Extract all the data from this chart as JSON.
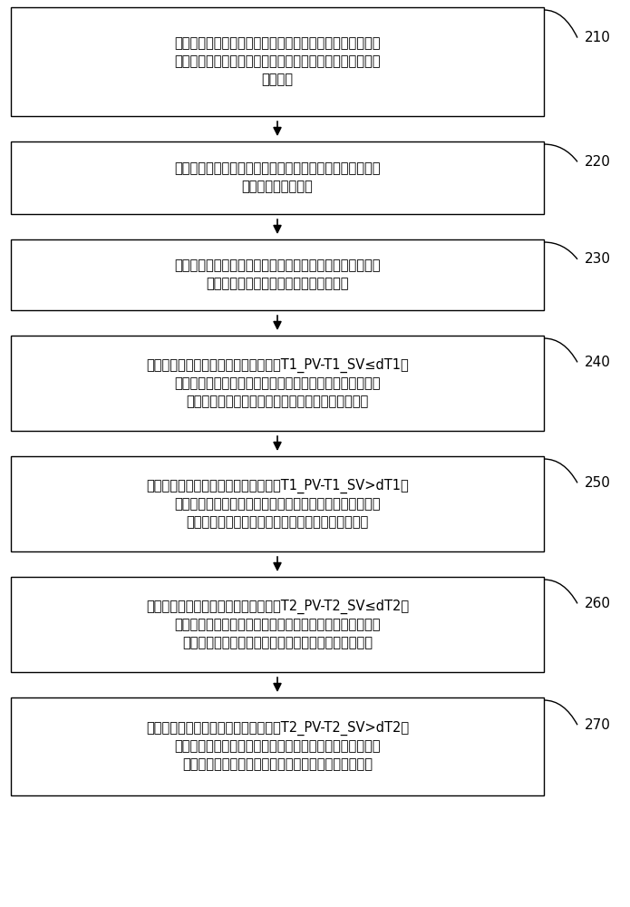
{
  "background_color": "#ffffff",
  "box_edge_color": "#000000",
  "box_fill_color": "#ffffff",
  "arrow_color": "#000000",
  "text_color": "#000000",
  "label_color": "#000000",
  "figsize": [
    6.95,
    10.0
  ],
  "dpi": 100,
  "boxes": [
    {
      "id": 210,
      "label": "210",
      "text_lines": [
        "获取压缩机的运行状态、设置在热旁路中的电子膨胀阀的开",
        "度和各间室的实际温度；其中，各间室均设置有对应的预设",
        "目标温度"
      ],
      "n_lines": 3
    },
    {
      "id": 220,
      "label": "220",
      "text_lines": [
        "根据各间室的实际温度，确定各间室的实际温度与对应的预",
        "设目标温度的温度差"
      ],
      "n_lines": 2
    },
    {
      "id": 230,
      "label": "230",
      "text_lines": [
        "当压缩机由待机状态至运行状态时，在预设时长内控制第一",
        "电子膨胀阀和第二电子膨胀阀的开度不变"
      ],
      "n_lines": 2
    },
    {
      "id": 240,
      "label": "240",
      "text_lines": [
        "若压缩机的运行时长达到预设时长，且T1_PV-T1_SV≤dT1，",
        "则控制第一电子膨胀阀的开度每隔预设第一时间增加预设第",
        "一开度量，直至达到第一电子膨胀阀的预设最大开度"
      ],
      "n_lines": 3
    },
    {
      "id": 250,
      "label": "250",
      "text_lines": [
        "若压缩机的运行时长达到预设时长，且T1_PV-T1_SV>dT1，",
        "则控制第一电子膨胀阀的开度每隔预设第二时间减小预设第",
        "二开度量，直至达到第一电子膨胀阀的预设最小开度"
      ],
      "n_lines": 3
    },
    {
      "id": 260,
      "label": "260",
      "text_lines": [
        "若压缩机的运行时长达到预设时长，且T2_PV-T2_SV≤dT2，",
        "则控制第二电子膨胀阀的开度每隔预设第三时间增大预设第",
        "三开度量，直至增大到第二电子膨胀阀的预设最大开度"
      ],
      "n_lines": 3
    },
    {
      "id": 270,
      "label": "270",
      "text_lines": [
        "若压缩机的运行时长达到预设时长，且T2_PV-T2_SV>dT2，",
        "则控制第二电子膨胀阀的开度每隔预设第四时间减小预设第",
        "四开度量，直至减小到第二电子膨胀阀的预设最小开度"
      ],
      "n_lines": 3
    }
  ]
}
